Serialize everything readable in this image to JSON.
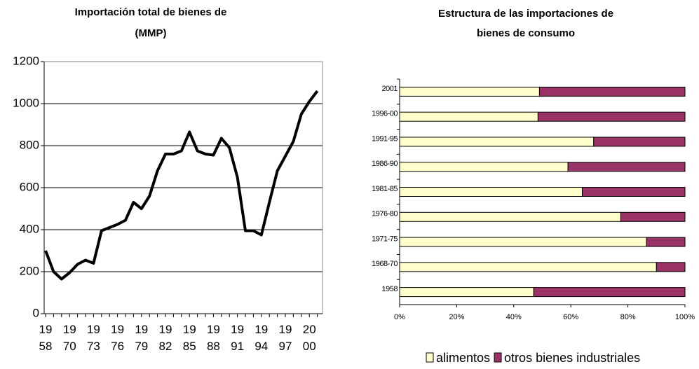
{
  "chart_data": [
    {
      "type": "line",
      "title": [
        "Importación total de bienes de",
        "(MMP)"
      ],
      "categories": [
        "19\n58",
        null,
        null,
        "19\n70",
        null,
        null,
        "19\n73",
        null,
        null,
        "19\n76",
        null,
        null,
        "19\n79",
        null,
        null,
        "19\n82",
        null,
        null,
        "19\n85",
        null,
        null,
        "19\n88",
        null,
        null,
        "19\n91",
        null,
        null,
        "19\n94",
        null,
        null,
        "19\n97",
        null,
        null,
        "20\n00",
        null
      ],
      "values": [
        300,
        200,
        165,
        195,
        235,
        255,
        240,
        395,
        410,
        425,
        445,
        530,
        500,
        560,
        680,
        760,
        760,
        775,
        865,
        775,
        760,
        755,
        835,
        790,
        650,
        395,
        395,
        375,
        530,
        680,
        750,
        820,
        950,
        1010,
        1060
      ],
      "color": "#000000",
      "ylim": [
        0,
        1200
      ],
      "yticks": [
        0,
        200,
        400,
        600,
        800,
        1000,
        1200
      ],
      "grid": true
    },
    {
      "type": "bar",
      "orientation": "horizontal",
      "stacked": true,
      "title": [
        "Estructura de las importaciones de",
        "bienes de consumo"
      ],
      "categories": [
        "2001",
        "1996-00",
        "1991-95",
        "1986-90",
        "1981-85",
        "1976-80",
        "1971-75",
        "1968-70",
        "1958"
      ],
      "series": [
        {
          "name": "alimentos",
          "color": "#ffffcc",
          "values": [
            49,
            48.5,
            68,
            59,
            64,
            77.5,
            86.5,
            90,
            47
          ]
        },
        {
          "name": "otros bienes industriales",
          "color": "#993366",
          "values": [
            51,
            51.5,
            32,
            41,
            36,
            22.5,
            13.5,
            10,
            53
          ]
        }
      ],
      "xlim": [
        0,
        100
      ],
      "xticks": [
        {
          "value": 0,
          "label": "0%"
        },
        {
          "value": 20,
          "label": "20%"
        },
        {
          "value": 40,
          "label": "40%"
        },
        {
          "value": 60,
          "label": "60%"
        },
        {
          "value": 80,
          "label": "80%"
        },
        {
          "value": 100,
          "label": "100%"
        }
      ],
      "grid": false,
      "legend": "bottom"
    }
  ]
}
